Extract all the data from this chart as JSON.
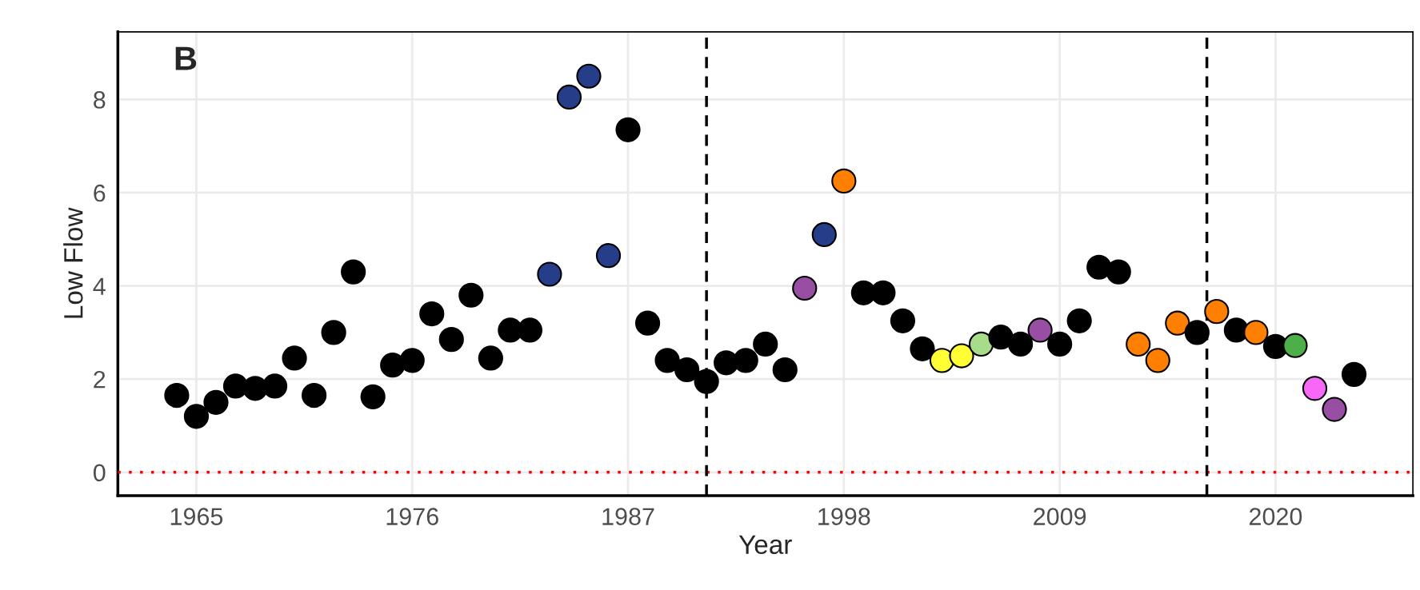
{
  "chart_data": {
    "type": "scatter",
    "xlabel": "Year",
    "ylabel": "Low Flow",
    "annotations": [
      "B"
    ],
    "x": [
      1964,
      1965,
      1966,
      1967,
      1968,
      1969,
      1970,
      1971,
      1972,
      1973,
      1974,
      1975,
      1976,
      1977,
      1978,
      1979,
      1980,
      1981,
      1982,
      1983,
      1984,
      1985,
      1986,
      1987,
      1988,
      1989,
      1990,
      1991,
      1992,
      1993,
      1994,
      1995,
      1996,
      1997,
      1998,
      1999,
      2000,
      2001,
      2002,
      2003,
      2004,
      2005,
      2006,
      2007,
      2008,
      2009,
      2010,
      2011,
      2012,
      2013,
      2014,
      2015,
      2016,
      2017,
      2018,
      2019,
      2020,
      2021,
      2022,
      2023,
      2024
    ],
    "values": [
      1.65,
      1.2,
      1.5,
      1.85,
      1.8,
      1.85,
      2.45,
      1.65,
      3.0,
      4.3,
      1.62,
      2.3,
      2.4,
      3.4,
      2.85,
      3.8,
      2.45,
      3.05,
      3.05,
      4.25,
      8.05,
      8.5,
      4.65,
      7.35,
      3.2,
      2.4,
      2.2,
      1.95,
      2.35,
      2.4,
      2.75,
      2.2,
      3.95,
      5.1,
      6.25,
      3.85,
      3.85,
      3.25,
      2.65,
      2.4,
      2.5,
      2.75,
      2.9,
      2.75,
      3.05,
      2.75,
      3.25,
      4.4,
      4.3,
      2.75,
      2.4,
      3.2,
      3.0,
      3.45,
      3.05,
      3.0,
      2.7,
      2.72,
      1.8,
      1.35,
      2.1
    ],
    "colors": [
      "#000000",
      "#000000",
      "#000000",
      "#000000",
      "#000000",
      "#000000",
      "#000000",
      "#000000",
      "#000000",
      "#000000",
      "#000000",
      "#000000",
      "#000000",
      "#000000",
      "#000000",
      "#000000",
      "#000000",
      "#000000",
      "#000000",
      "#263e8a",
      "#263e8a",
      "#263e8a",
      "#263e8a",
      "#000000",
      "#000000",
      "#000000",
      "#000000",
      "#000000",
      "#000000",
      "#000000",
      "#000000",
      "#000000",
      "#984ea3",
      "#263e8a",
      "#ff7f00",
      "#000000",
      "#000000",
      "#000000",
      "#000000",
      "#ffff33",
      "#ffff33",
      "#a6dc8a",
      "#000000",
      "#000000",
      "#984ea3",
      "#000000",
      "#000000",
      "#000000",
      "#000000",
      "#ff7f00",
      "#ff7f00",
      "#ff7f00",
      "#000000",
      "#ff7f00",
      "#000000",
      "#ff7f00",
      "#000000",
      "#4daf4a",
      "#f768f7",
      "#984ea3",
      "#000000"
    ],
    "marker": "circle",
    "xlim": [
      1961,
      2027
    ],
    "xticks": [
      1965,
      1976,
      1987,
      1998,
      2009,
      2020
    ],
    "ylim": [
      -0.5,
      9.45
    ],
    "yticks": [
      0,
      2,
      4,
      6,
      8
    ],
    "grid": true,
    "ref_lines": [
      {
        "axis": "y",
        "value": 0,
        "color": "#ff0000",
        "line_style": "dotted"
      },
      {
        "axis": "x",
        "value": 1991,
        "color": "#000000",
        "line_style": "dashed"
      },
      {
        "axis": "x",
        "value": 2016.5,
        "color": "#000000",
        "line_style": "dashed"
      }
    ]
  }
}
